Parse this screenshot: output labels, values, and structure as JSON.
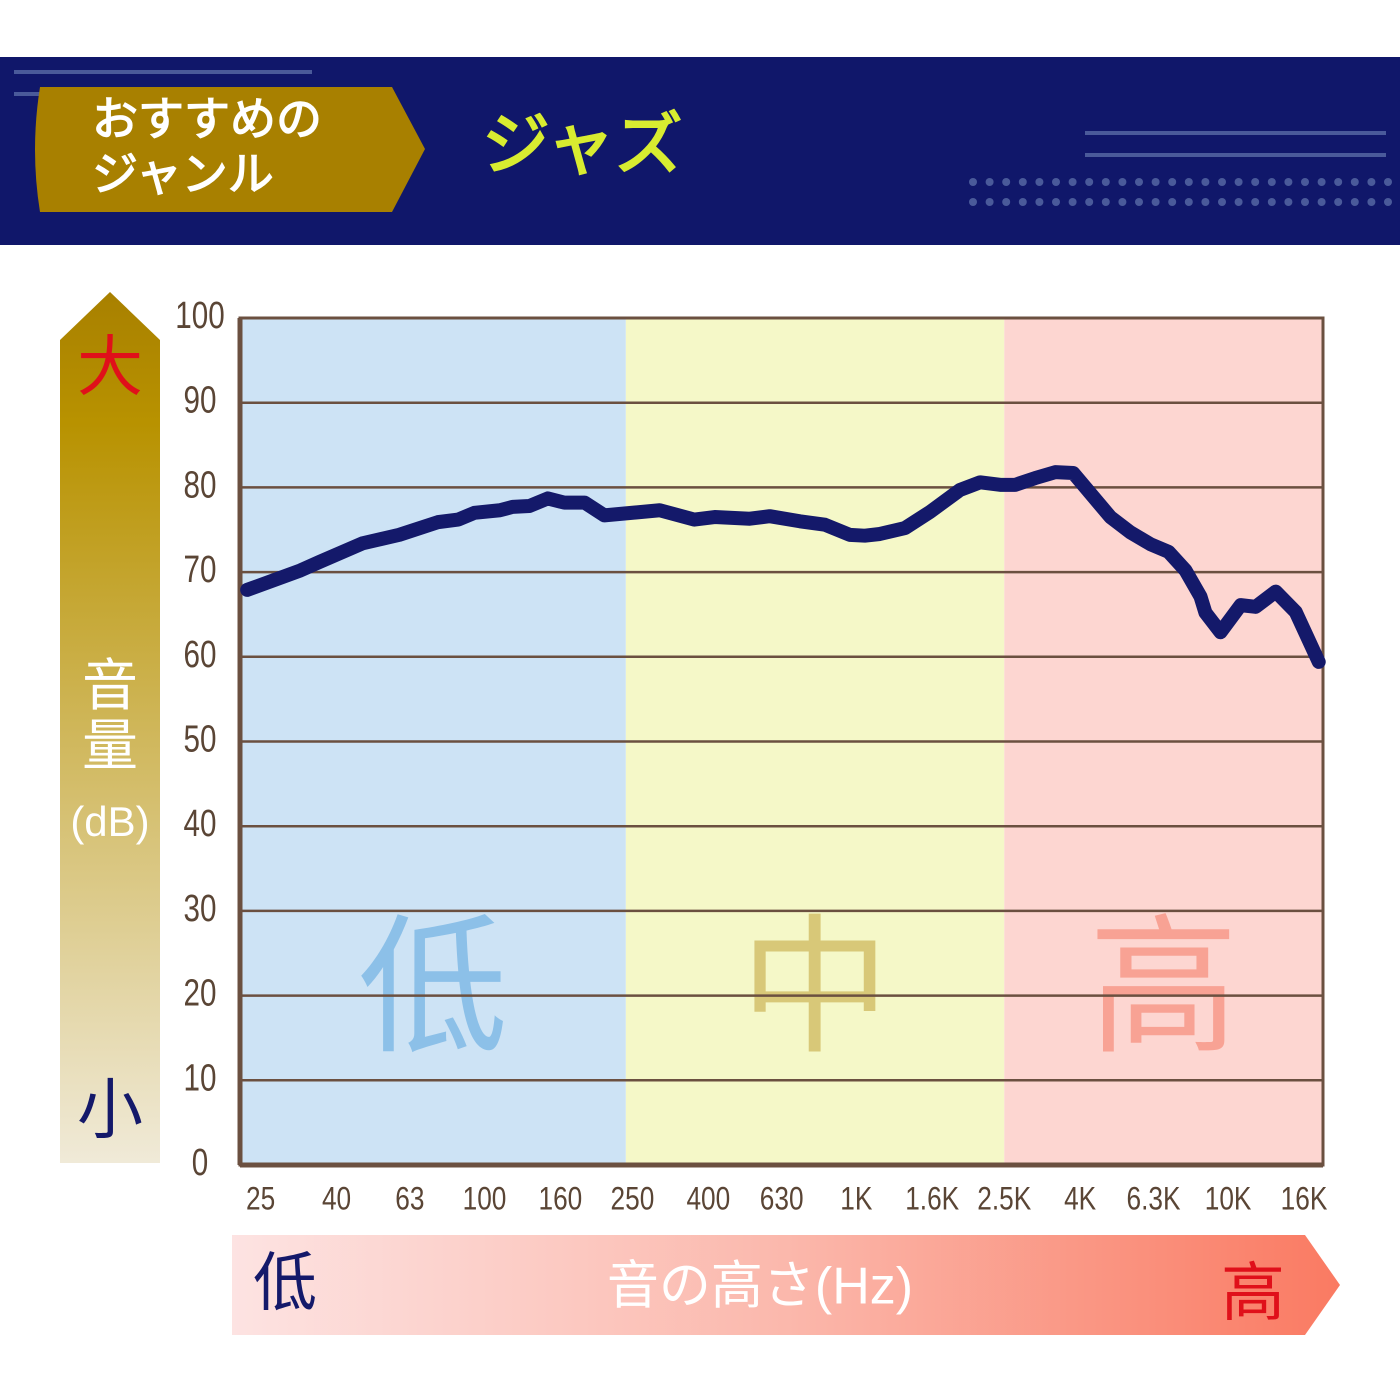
{
  "header": {
    "tag_lines": [
      "おすすめの",
      "ジャンル"
    ],
    "genre": "ジャズ"
  },
  "chart_data": {
    "type": "line",
    "x": [
      23,
      32,
      36,
      47,
      59,
      75,
      85,
      94,
      110,
      119,
      132,
      148,
      164,
      186,
      210,
      296,
      367,
      416,
      517,
      585,
      705,
      823,
      960,
      1054,
      1157,
      1352,
      1578,
      1901,
      2153,
      2438,
      2675,
      3028,
      3428,
      3833,
      4824,
      5459,
      6180,
      6913,
      7681,
      8431,
      8694,
      9543,
      10810,
      11860,
      13430,
      15200,
      17530
    ],
    "series": [
      {
        "color": "#14196a",
        "values": [
          67.9,
          70.2,
          71.2,
          73.4,
          74.4,
          75.9,
          76.2,
          77.0,
          77.3,
          77.7,
          77.8,
          78.7,
          78.2,
          78.2,
          76.7,
          77.3,
          76.2,
          76.5,
          76.3,
          76.6,
          76.0,
          75.6,
          74.4,
          74.3,
          74.5,
          75.2,
          77.1,
          79.7,
          80.6,
          80.3,
          80.3,
          81.1,
          81.8,
          81.7,
          76.5,
          74.7,
          73.3,
          72.4,
          70.2,
          67.1,
          65.2,
          62.9,
          66.1,
          65.9,
          67.7,
          65.3,
          59.4
        ]
      }
    ],
    "xscale": "log",
    "xlim": [
      22,
      18000
    ],
    "xticks": [
      25,
      40,
      63,
      100,
      160,
      250,
      400,
      630,
      {
        "value": 1000,
        "label": "1K"
      },
      {
        "value": 1600,
        "label": "1.6K"
      },
      {
        "value": 2500,
        "label": "2.5K"
      },
      {
        "value": 4000,
        "label": "4K"
      },
      {
        "value": 6300,
        "label": "6.3K"
      },
      {
        "value": 10000,
        "label": "10K"
      },
      {
        "value": 16000,
        "label": "16K"
      }
    ],
    "ylim": [
      0,
      100
    ],
    "yticks": [
      0,
      10,
      20,
      30,
      40,
      50,
      60,
      70,
      80,
      90,
      100
    ],
    "grid": true,
    "bands": [
      {
        "label": "低",
        "from": 22,
        "to": 240,
        "color": "#cde3f5",
        "label_color": "#8cc0e8"
      },
      {
        "label": "中",
        "from": 240,
        "to": 2500,
        "color": "#f5f8c8",
        "label_color": "#d8c878"
      },
      {
        "label": "高",
        "from": 2500,
        "to": 18000,
        "color": "#fdd6d1",
        "label_color": "#f8a294"
      }
    ],
    "y_axis": {
      "top": "大",
      "label_lines": [
        "音量",
        "(dB)"
      ],
      "bottom": "小"
    },
    "x_axis": {
      "left": "低",
      "label": "音の高さ(Hz)",
      "right": "高"
    }
  }
}
